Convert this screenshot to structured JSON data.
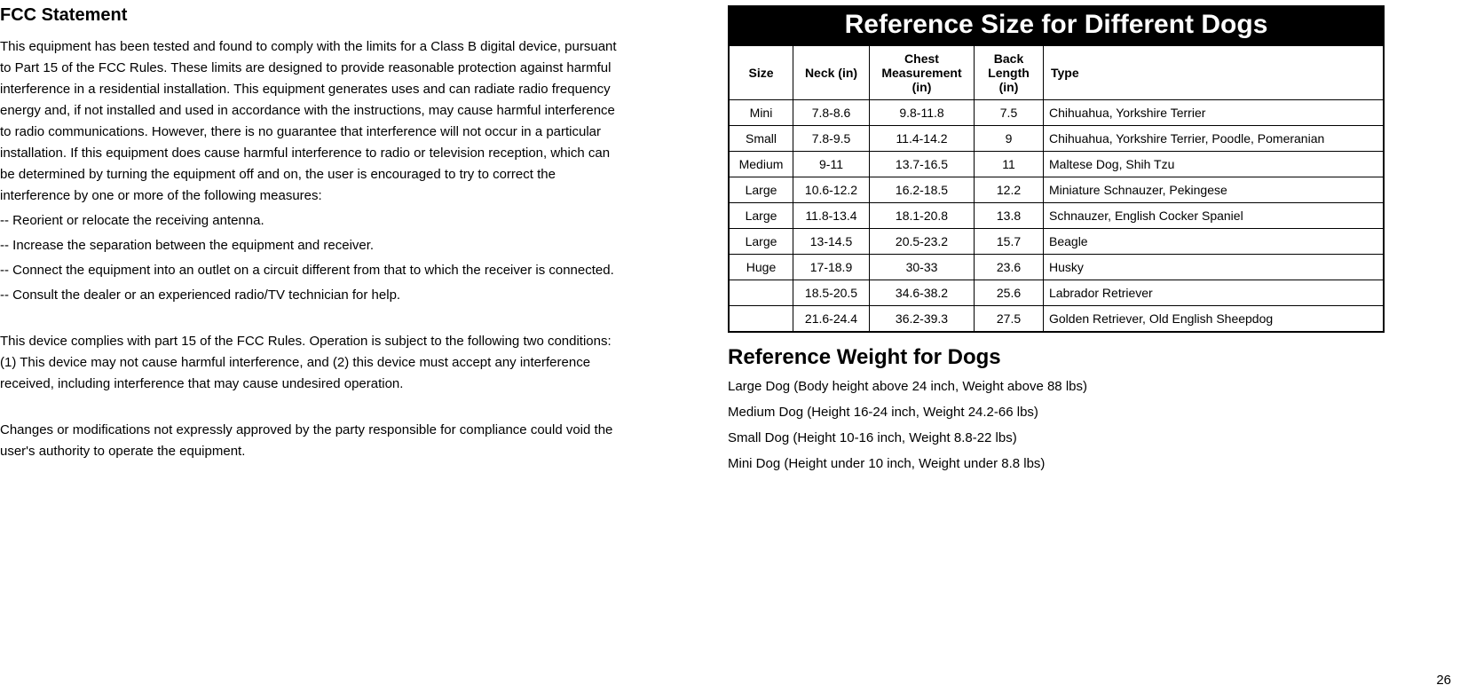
{
  "fcc": {
    "title": "FCC Statement",
    "p1": "This equipment has been tested and found to comply with the limits for a Class B digital device, pursuant to Part 15 of the FCC Rules. These limits are designed to provide reasonable protection against harmful interference in a residential installation. This equipment generates uses and can radiate radio frequency energy and, if not installed and used in accordance with the instructions, may cause harmful interference to radio communications. However, there is no guarantee that interference will not occur in a particular installation. If this equipment does cause harmful interference to radio or television reception, which can be determined by turning the equipment off and on, the user is encouraged to try to correct the interference by one or more of the following measures:",
    "m1": "-- Reorient or relocate the receiving antenna.",
    "m2": "-- Increase the separation between the equipment and receiver.",
    "m3": "-- Connect the equipment into an outlet on a circuit different from that to which the receiver is connected.",
    "m4": "-- Consult the dealer or an experienced radio/TV technician for help.",
    "p2": "This device complies with part 15 of the FCC Rules. Operation is subject to the following two conditions:(1) This device may not cause harmful interference, and (2) this device must accept any interference received, including interference that may cause undesired operation.",
    "p3": "Changes or modifications not expressly approved by the party responsible for compliance could void the user's authority to operate the equipment."
  },
  "sizeTable": {
    "title": "Reference Size for Different Dogs",
    "headers": {
      "size": "Size",
      "neck": "Neck (in)",
      "chest": "Chest Measurement (in)",
      "back": "Back Length (in)",
      "type": "Type"
    },
    "rows": [
      {
        "size": "Mini",
        "neck": "7.8-8.6",
        "chest": "9.8-11.8",
        "back": "7.5",
        "type": "Chihuahua, Yorkshire Terrier"
      },
      {
        "size": "Small",
        "neck": "7.8-9.5",
        "chest": "11.4-14.2",
        "back": "9",
        "type": "Chihuahua, Yorkshire Terrier, Poodle, Pomeranian"
      },
      {
        "size": "Medium",
        "neck": "9-11",
        "chest": "13.7-16.5",
        "back": "11",
        "type": "Maltese Dog, Shih Tzu"
      },
      {
        "size": "Large",
        "neck": "10.6-12.2",
        "chest": "16.2-18.5",
        "back": "12.2",
        "type": "Miniature Schnauzer, Pekingese"
      },
      {
        "size": "Large",
        "neck": "11.8-13.4",
        "chest": "18.1-20.8",
        "back": "13.8",
        "type": "Schnauzer, English Cocker Spaniel"
      },
      {
        "size": "Large",
        "neck": "13-14.5",
        "chest": "20.5-23.2",
        "back": "15.7",
        "type": "Beagle"
      },
      {
        "size": "Huge",
        "neck": "17-18.9",
        "chest": "30-33",
        "back": "23.6",
        "type": "Husky"
      },
      {
        "size": "",
        "neck": "18.5-20.5",
        "chest": "34.6-38.2",
        "back": "25.6",
        "type": "Labrador Retriever"
      },
      {
        "size": "",
        "neck": "21.6-24.4",
        "chest": "36.2-39.3",
        "back": "27.5",
        "type": "Golden Retriever, Old English Sheepdog"
      }
    ],
    "colors": {
      "header_bg": "#000000",
      "header_fg": "#ffffff",
      "border": "#000000",
      "cell_bg": "#ffffff",
      "cell_fg": "#000000"
    }
  },
  "weightRef": {
    "title": "Reference Weight for Dogs",
    "lines": [
      "Large Dog (Body height above 24 inch, Weight above 88 lbs)",
      "Medium Dog (Height 16-24 inch, Weight 24.2-66 lbs)",
      "Small Dog (Height 10-16 inch, Weight 8.8-22 lbs)",
      "Mini Dog (Height under 10 inch, Weight under 8.8 lbs)"
    ]
  },
  "pageNumber": "26"
}
